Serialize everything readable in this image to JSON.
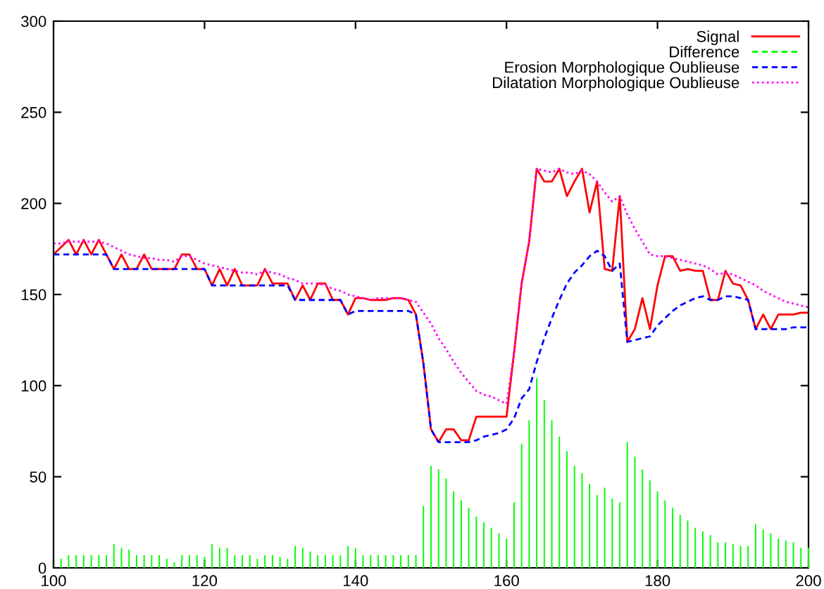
{
  "chart_data": {
    "type": "line",
    "x": [
      100,
      101,
      102,
      103,
      104,
      105,
      106,
      107,
      108,
      109,
      110,
      111,
      112,
      113,
      114,
      115,
      116,
      117,
      118,
      119,
      120,
      121,
      122,
      123,
      124,
      125,
      126,
      127,
      128,
      129,
      130,
      131,
      132,
      133,
      134,
      135,
      136,
      137,
      138,
      139,
      140,
      141,
      142,
      143,
      144,
      145,
      146,
      147,
      148,
      149,
      150,
      151,
      152,
      153,
      154,
      155,
      156,
      157,
      158,
      159,
      160,
      161,
      162,
      163,
      164,
      165,
      166,
      167,
      168,
      169,
      170,
      171,
      172,
      173,
      174,
      175,
      176,
      177,
      178,
      179,
      180,
      181,
      182,
      183,
      184,
      185,
      186,
      187,
      188,
      189,
      190,
      191,
      192,
      193,
      194,
      195,
      196,
      197,
      198,
      199,
      200
    ],
    "series": [
      {
        "name": "Signal",
        "color": "#ff0000",
        "line_style": "solid",
        "values": [
          172,
          176,
          180,
          172,
          180,
          172,
          180,
          172,
          164,
          172,
          164,
          164,
          172,
          164,
          164,
          164,
          164,
          172,
          172,
          164,
          164,
          155,
          164,
          155,
          164,
          155,
          155,
          155,
          164,
          156,
          156,
          156,
          147,
          155,
          147,
          156,
          156,
          147,
          147,
          139,
          148,
          148,
          147,
          147,
          147,
          148,
          148,
          147,
          139,
          112,
          76,
          69,
          76,
          76,
          70,
          70,
          83,
          83,
          83,
          83,
          83,
          118,
          156,
          179,
          219,
          212,
          212,
          219,
          204,
          212,
          219,
          195,
          212,
          164,
          163,
          204,
          124,
          131,
          148,
          131,
          155,
          171,
          171,
          163,
          164,
          163,
          163,
          147,
          147,
          163,
          156,
          155,
          147,
          131,
          139,
          131,
          139,
          139,
          139,
          140,
          140
        ]
      },
      {
        "name": "Difference",
        "color": "#00ff00",
        "type": "bar",
        "line_style": "dashed",
        "values": [
          0,
          5,
          7,
          7,
          7,
          7,
          7,
          7,
          13,
          11,
          10,
          7,
          7,
          7,
          7,
          5,
          3,
          7,
          7,
          7,
          6,
          13,
          11,
          11,
          7,
          7,
          7,
          5,
          7,
          7,
          6,
          5,
          12,
          11,
          9,
          7,
          7,
          7,
          7,
          12,
          11,
          7,
          7,
          7,
          7,
          7,
          7,
          7,
          7,
          34,
          56,
          54,
          49,
          42,
          37,
          33,
          28,
          25,
          22,
          19,
          16,
          36,
          68,
          81,
          104,
          92,
          81,
          72,
          64,
          56,
          52,
          46,
          40,
          44,
          38,
          36,
          69,
          61,
          54,
          48,
          42,
          37,
          33,
          29,
          26,
          22,
          20,
          18,
          14,
          14,
          13,
          12,
          12,
          24,
          21,
          19,
          16,
          15,
          14,
          11,
          11
        ]
      },
      {
        "name": "Erosion Morphologique Oublieuse",
        "color": "#0000ff",
        "line_style": "dashed",
        "values": [
          172,
          172,
          172,
          172,
          172,
          172,
          172,
          172,
          164,
          164,
          164,
          164,
          164,
          164,
          164,
          164,
          164,
          164,
          164,
          164,
          164,
          155,
          155,
          155,
          155,
          155,
          155,
          155,
          155,
          155,
          155,
          155,
          147,
          147,
          147,
          147,
          147,
          147,
          147,
          139,
          141,
          141,
          141,
          141,
          141,
          141,
          141,
          141,
          139,
          112,
          76,
          69,
          69,
          69,
          69,
          69,
          70,
          72,
          73,
          74,
          76,
          82,
          93,
          98,
          113,
          126,
          137,
          147,
          156,
          162,
          166,
          171,
          174,
          171,
          163,
          167,
          124,
          125,
          126,
          127,
          133,
          137,
          141,
          144,
          146,
          148,
          149,
          147,
          147,
          149,
          149,
          148,
          147,
          131,
          131,
          131,
          131,
          131,
          132,
          132,
          132
        ]
      },
      {
        "name": "Dilatation Morphologique Oublieuse",
        "color": "#ff00ff",
        "line_style": "dotted",
        "values": [
          178,
          178,
          179,
          179,
          179,
          179,
          179,
          178,
          176,
          174,
          172,
          171,
          170,
          170,
          169,
          169,
          168,
          171,
          171,
          169,
          167,
          166,
          165,
          164,
          163,
          162,
          162,
          161,
          163,
          162,
          161,
          159,
          158,
          156,
          156,
          156,
          155,
          153,
          152,
          150,
          149,
          148,
          147,
          148,
          148,
          148,
          148,
          147,
          146,
          140,
          134,
          126,
          120,
          113,
          107,
          102,
          97,
          95,
          94,
          92,
          90,
          118,
          156,
          179,
          219,
          218,
          217,
          219,
          217,
          216,
          218,
          216,
          212,
          206,
          201,
          204,
          194,
          186,
          179,
          172,
          171,
          171,
          170,
          169,
          168,
          167,
          166,
          164,
          161,
          162,
          161,
          159,
          157,
          155,
          152,
          150,
          148,
          146,
          145,
          144,
          143
        ]
      }
    ],
    "xlim": [
      100,
      200
    ],
    "xticks": [
      100,
      120,
      140,
      160,
      180,
      200
    ],
    "ylim": [
      0,
      300
    ],
    "yticks": [
      0,
      50,
      100,
      150,
      200,
      250,
      300
    ],
    "legend": "top right"
  }
}
